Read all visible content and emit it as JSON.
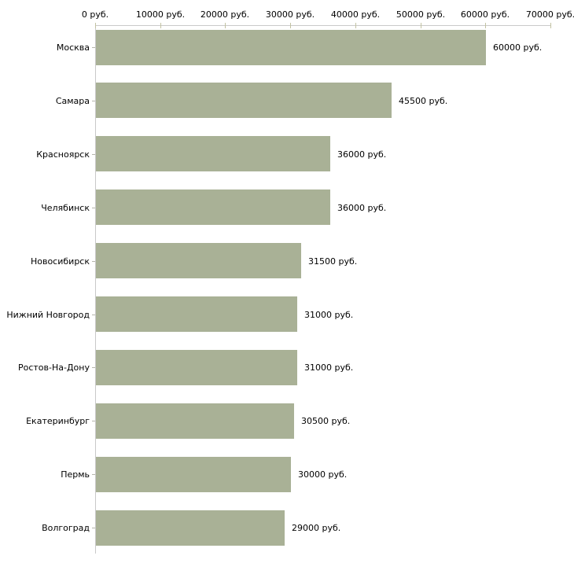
{
  "chart_data": {
    "type": "bar",
    "orientation": "horizontal",
    "title": "",
    "xlabel": "",
    "ylabel": "",
    "currency_suffix": " руб.",
    "categories": [
      "Москва",
      "Самара",
      "Красноярск",
      "Челябинск",
      "Новосибирск",
      "Нижний Новгород",
      "Ростов-На-Дону",
      "Екатеринбург",
      "Пермь",
      "Волгоград"
    ],
    "values": [
      60000,
      45500,
      36000,
      36000,
      31500,
      31000,
      31000,
      30500,
      30000,
      29000
    ],
    "value_labels": [
      "60000 руб.",
      "45500 руб.",
      "36000 руб.",
      "36000 руб.",
      "31500 руб.",
      "31000 руб.",
      "31000 руб.",
      "30500 руб.",
      "30000 руб.",
      "29000 руб."
    ],
    "x_axis": {
      "position": "top",
      "ticks": [
        0,
        10000,
        20000,
        30000,
        40000,
        50000,
        60000,
        70000
      ],
      "tick_labels": [
        "0 руб.",
        "10000 руб.",
        "20000 руб.",
        "30000 руб.",
        "40000 руб.",
        "50000 руб.",
        "60000 руб.",
        "70000 руб."
      ],
      "min": 0,
      "max": 70000
    },
    "grid": false,
    "legend": false,
    "colors": {
      "bar_fill": "#a9b196",
      "axis_line": "#c9c9c9",
      "axis_tick": "#c2c2a2",
      "category_tick": "#b5b5ab",
      "text": "#000000",
      "background": "#ffffff"
    }
  }
}
